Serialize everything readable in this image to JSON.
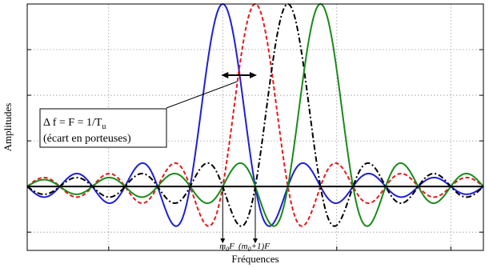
{
  "chart_data": {
    "type": "line",
    "xlabel": "Fréquences",
    "ylabel": "Amplitudes",
    "xlim": [
      -6,
      8
    ],
    "ylim": [
      -0.35,
      1.0
    ],
    "grid": true,
    "ticks_labeled": false,
    "y_ticks": [
      -0.25,
      0,
      0.25,
      0.5,
      0.75,
      1.0
    ],
    "x_grid_lines": [
      -3.5,
      0,
      3.5,
      7
    ],
    "series": [
      {
        "color": "#1f1fd6",
        "dash": "solid",
        "center": 0,
        "x_range": [
          -6,
          8
        ],
        "function": "sinc(x - center)"
      },
      {
        "color": "#e41a1c",
        "dash": "dashed",
        "center": 1,
        "x_range": [
          -6,
          8
        ],
        "function": "sinc(x - center)"
      },
      {
        "color": "#000000",
        "dash": "dashdot",
        "center": 2,
        "x_range": [
          -6,
          8
        ],
        "function": "sinc(x - center)"
      },
      {
        "color": "#1a8a1a",
        "dash": "solid",
        "center": 3,
        "x_range": [
          -6,
          8
        ],
        "function": "sinc(x - center)"
      }
    ],
    "annotations": {
      "delta_box_line1": "Δ f = F = 1/T",
      "delta_box_sub": "u",
      "delta_box_line2": "(écart en porteuses)",
      "marker_1_main": "m",
      "marker_1_sub": "0",
      "marker_1_suffix": "F",
      "marker_2_prefix": "(m",
      "marker_2_sub": "0",
      "marker_2_suffix": "+1)F",
      "marker_1_x": 0,
      "marker_2_x": 1,
      "marker_y": -0.32,
      "double_arrow_x": [
        0,
        1
      ],
      "double_arrow_y": 0.61
    }
  }
}
